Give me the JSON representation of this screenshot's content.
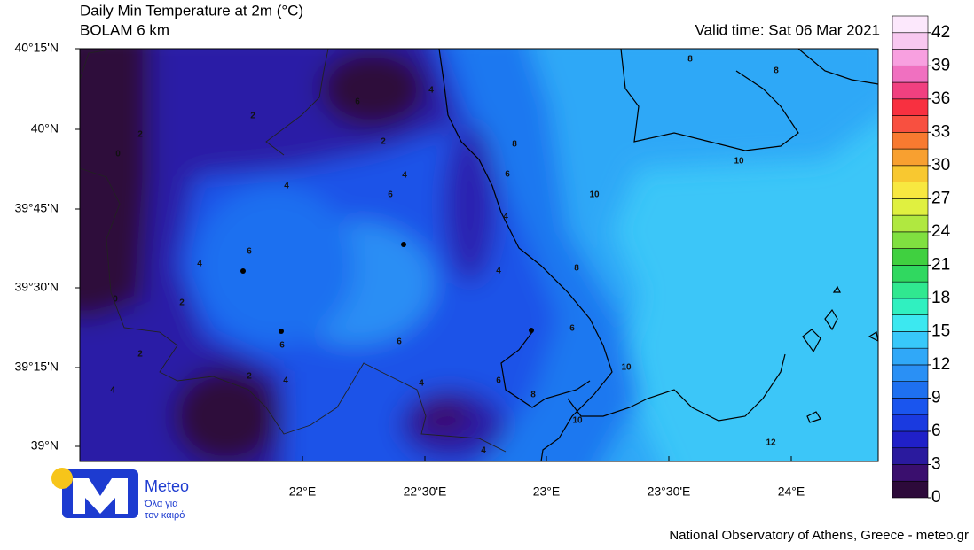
{
  "header": {
    "title": "Daily Min Temperature at 2m (°C)",
    "subtitle": "BOLAM 6 km",
    "valid_time": "Valid time: Sat 06 Mar 2021"
  },
  "map": {
    "lat_labels": [
      "40°15'N",
      "40°N",
      "39°45'N",
      "39°30'N",
      "39°15'N",
      "39°N"
    ],
    "lon_labels": [
      "22°E",
      "22°30'E",
      "23°E",
      "23°30'E",
      "24°E"
    ],
    "contour_labels": [
      2,
      2,
      0,
      6,
      4,
      2,
      4,
      6,
      4,
      8,
      6,
      4,
      10,
      10,
      8,
      8,
      6,
      4,
      0,
      2,
      4,
      8,
      6,
      6,
      6,
      2,
      2,
      4,
      4,
      4,
      6,
      8,
      10,
      10,
      12,
      4
    ],
    "colorbar": {
      "ticks": [
        0,
        3,
        6,
        9,
        12,
        15,
        18,
        21,
        24,
        27,
        30,
        33,
        36,
        39,
        42
      ],
      "range": [
        0,
        43.5
      ],
      "colors": [
        "#2d0a3a",
        "#3a0f6e",
        "#2a1a9e",
        "#2020c8",
        "#1a3ae0",
        "#1a55ee",
        "#1e70f0",
        "#2a90f5",
        "#30a8f8",
        "#38c8fa",
        "#3ce8f0",
        "#30f0c0",
        "#30e890",
        "#30d860",
        "#40d040",
        "#80e040",
        "#b0e840",
        "#e0f040",
        "#f8e840",
        "#f8c830",
        "#f8a030",
        "#f87a30",
        "#f85040",
        "#f83040",
        "#f04080",
        "#f070c0",
        "#f8a0e0",
        "#f8c8f0",
        "#fce8fc"
      ]
    }
  },
  "logo": {
    "name": "Meteo",
    "tagline": [
      "Όλα για",
      "τον καιρό"
    ]
  },
  "footer": "National Observatory of Athens, Greece - meteo.gr"
}
